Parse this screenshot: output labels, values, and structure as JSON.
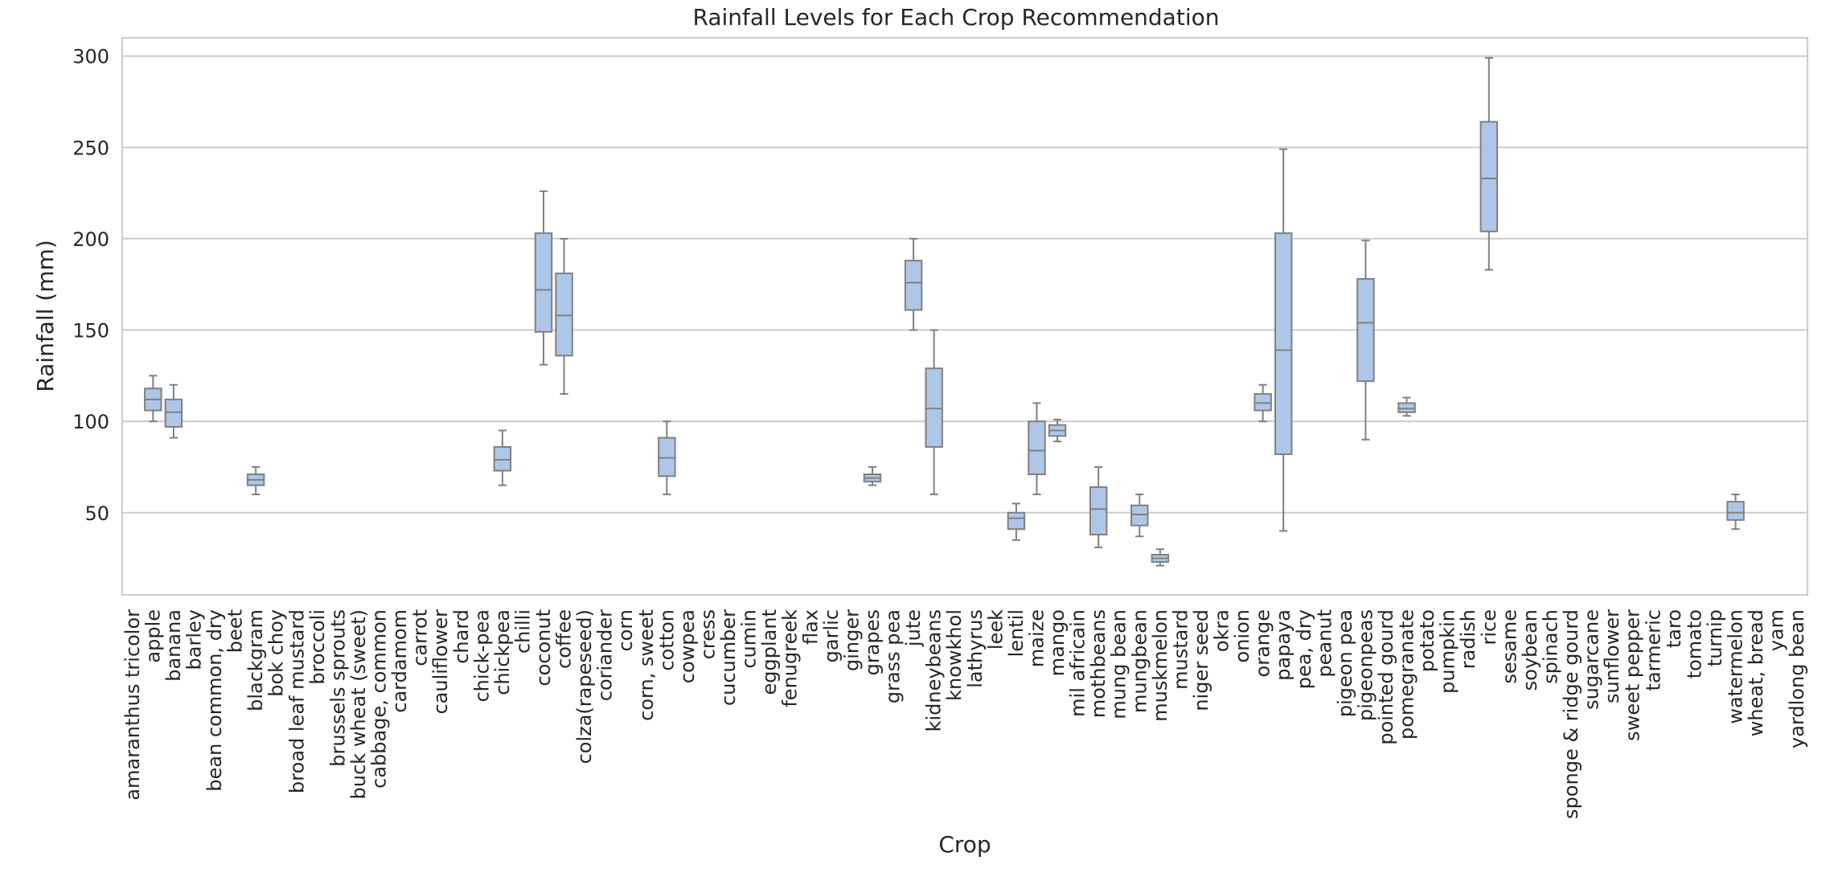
{
  "chart_data": {
    "type": "box",
    "title": "Rainfall Levels for Each Crop Recommendation",
    "xlabel": "Crop",
    "ylabel": "Rainfall (mm)",
    "ylim": [
      5,
      310
    ],
    "yticks": [
      50,
      100,
      150,
      200,
      250,
      300
    ],
    "grid": "horizontal",
    "box_color": "#aec7e8",
    "line_color": "#808080",
    "categories": [
      "amaranthus tricolor",
      "apple",
      "banana",
      "barley",
      "bean common, dry",
      "beet",
      "blackgram",
      "bok choy",
      "broad leaf mustard",
      "broccoli",
      "brussels sprouts",
      "buck wheat (sweet)",
      "cabbage, common",
      "cardamom",
      "carrot",
      "cauliflower",
      "chard",
      "chick-pea",
      "chickpea",
      "chilli",
      "coconut",
      "coffee",
      "colza(rapeseed)",
      "coriander",
      "corn",
      "corn, sweet",
      "cotton",
      "cowpea",
      "cress",
      "cucumber",
      "cumin",
      "eggplant",
      "fenugreek",
      "flax",
      "garlic",
      "ginger",
      "grapes",
      "grass pea",
      "jute",
      "kidneybeans",
      "knowkhol",
      "lathyrus",
      "leek",
      "lentil",
      "maize",
      "mango",
      "mil africain",
      "mothbeans",
      "mung bean",
      "mungbean",
      "muskmelon",
      "mustard",
      "niger seed",
      "okra",
      "onion",
      "orange",
      "papaya",
      "pea, dry",
      "peanut",
      "pigeon pea",
      "pigeonpeas",
      "pointed gourd",
      "pomegranate",
      "potato",
      "pumpkin",
      "radish",
      "rice",
      "sesame",
      "soybean",
      "spinach",
      "sponge & ridge gourd",
      "sugarcane",
      "sunflower",
      "sweet pepper",
      "tarmeric",
      "taro",
      "tomato",
      "turnip",
      "watermelon",
      "wheat, bread",
      "yam",
      "yardlong bean"
    ],
    "boxes": [
      {
        "category": "apple",
        "min": 100,
        "q1": 106,
        "median": 112,
        "q3": 118,
        "max": 125
      },
      {
        "category": "banana",
        "min": 91,
        "q1": 97,
        "median": 105,
        "q3": 112,
        "max": 120
      },
      {
        "category": "blackgram",
        "min": 60,
        "q1": 65,
        "median": 68,
        "q3": 71,
        "max": 75
      },
      {
        "category": "chickpea",
        "min": 65,
        "q1": 73,
        "median": 79,
        "q3": 86,
        "max": 95
      },
      {
        "category": "coconut",
        "min": 131,
        "q1": 149,
        "median": 172,
        "q3": 203,
        "max": 226
      },
      {
        "category": "coffee",
        "min": 115,
        "q1": 136,
        "median": 158,
        "q3": 181,
        "max": 200
      },
      {
        "category": "cotton",
        "min": 60,
        "q1": 70,
        "median": 80,
        "q3": 91,
        "max": 100
      },
      {
        "category": "grapes",
        "min": 65,
        "q1": 67,
        "median": 69,
        "q3": 71,
        "max": 75
      },
      {
        "category": "jute",
        "min": 150,
        "q1": 161,
        "median": 176,
        "q3": 188,
        "max": 200
      },
      {
        "category": "kidneybeans",
        "min": 60,
        "q1": 86,
        "median": 107,
        "q3": 129,
        "max": 150
      },
      {
        "category": "lentil",
        "min": 35,
        "q1": 41,
        "median": 47,
        "q3": 50,
        "max": 55
      },
      {
        "category": "maize",
        "min": 60,
        "q1": 71,
        "median": 84,
        "q3": 100,
        "max": 110
      },
      {
        "category": "mango",
        "min": 89,
        "q1": 92,
        "median": 95,
        "q3": 98,
        "max": 101
      },
      {
        "category": "mothbeans",
        "min": 31,
        "q1": 38,
        "median": 52,
        "q3": 64,
        "max": 75
      },
      {
        "category": "mungbean",
        "min": 37,
        "q1": 43,
        "median": 49,
        "q3": 54,
        "max": 60
      },
      {
        "category": "muskmelon",
        "min": 21,
        "q1": 23,
        "median": 25,
        "q3": 27,
        "max": 30
      },
      {
        "category": "orange",
        "min": 100,
        "q1": 106,
        "median": 110,
        "q3": 115,
        "max": 120
      },
      {
        "category": "papaya",
        "min": 40,
        "q1": 82,
        "median": 139,
        "q3": 203,
        "max": 249
      },
      {
        "category": "pigeonpeas",
        "min": 90,
        "q1": 122,
        "median": 154,
        "q3": 178,
        "max": 199
      },
      {
        "category": "pomegranate",
        "min": 103,
        "q1": 105,
        "median": 107,
        "q3": 110,
        "max": 113
      },
      {
        "category": "rice",
        "min": 183,
        "q1": 204,
        "median": 233,
        "q3": 264,
        "max": 299
      },
      {
        "category": "watermelon",
        "min": 41,
        "q1": 46,
        "median": 50,
        "q3": 56,
        "max": 60
      }
    ]
  }
}
